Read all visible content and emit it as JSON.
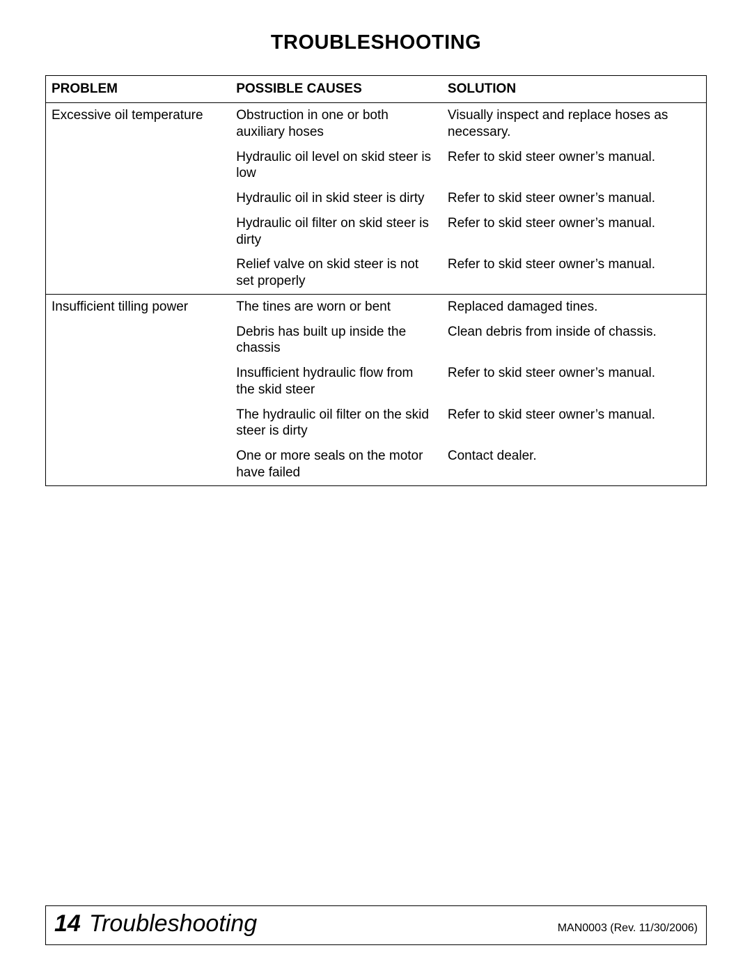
{
  "title": "TROUBLESHOOTING",
  "headers": {
    "problem": "PROBLEM",
    "cause": "POSSIBLE CAUSES",
    "solution": "SOLUTION"
  },
  "groups": [
    {
      "problem": "Excessive oil temperature",
      "rows": [
        {
          "cause": "Obstruction in one or both auxiliary hoses",
          "solution": "Visually inspect and replace hoses as necessary."
        },
        {
          "cause": "Hydraulic oil level on skid steer is low",
          "solution": "Refer to skid steer owner’s manual."
        },
        {
          "cause": "Hydraulic oil in skid steer is dirty",
          "solution": "Refer to skid steer owner’s manual."
        },
        {
          "cause": "Hydraulic oil filter on skid steer is dirty",
          "solution": "Refer to skid steer owner’s manual."
        },
        {
          "cause": "Relief valve on skid steer is not set properly",
          "solution": "Refer to skid steer owner’s manual."
        }
      ]
    },
    {
      "problem": "Insufficient tilling power",
      "rows": [
        {
          "cause": "The tines are worn or bent",
          "solution": "Replaced damaged tines."
        },
        {
          "cause": "Debris has built up inside the chassis",
          "solution": "Clean debris from inside of chassis."
        },
        {
          "cause": "Insufficient hydraulic flow from the skid steer",
          "solution": "Refer to skid steer owner’s manual."
        },
        {
          "cause": "The hydraulic oil filter on the skid steer is dirty",
          "solution": "Refer to skid steer owner’s manual."
        },
        {
          "cause": "One or more seals on the motor have failed",
          "solution": "Contact dealer."
        }
      ]
    }
  ],
  "footer": {
    "page_number": "14",
    "section": "Troubleshooting",
    "revision": "MAN0003 (Rev. 11/30/2006)"
  }
}
